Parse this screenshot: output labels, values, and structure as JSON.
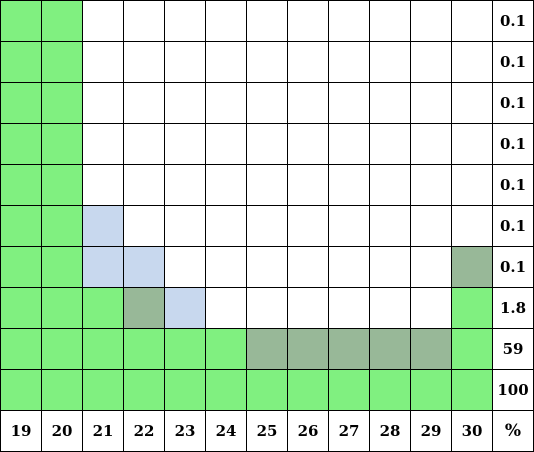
{
  "colors": {
    "empty": "#ffffff",
    "green": "#80f080",
    "blue": "#c8d8ee",
    "gray": "#98b898"
  },
  "columns": [
    "19",
    "20",
    "21",
    "22",
    "23",
    "24",
    "25",
    "26",
    "27",
    "28",
    "29",
    "30"
  ],
  "percent_header": "%",
  "rows": [
    {
      "percent": "0.1",
      "cells": [
        "green",
        "green",
        "empty",
        "empty",
        "empty",
        "empty",
        "empty",
        "empty",
        "empty",
        "empty",
        "empty",
        "empty"
      ]
    },
    {
      "percent": "0.1",
      "cells": [
        "green",
        "green",
        "empty",
        "empty",
        "empty",
        "empty",
        "empty",
        "empty",
        "empty",
        "empty",
        "empty",
        "empty"
      ]
    },
    {
      "percent": "0.1",
      "cells": [
        "green",
        "green",
        "empty",
        "empty",
        "empty",
        "empty",
        "empty",
        "empty",
        "empty",
        "empty",
        "empty",
        "empty"
      ]
    },
    {
      "percent": "0.1",
      "cells": [
        "green",
        "green",
        "empty",
        "empty",
        "empty",
        "empty",
        "empty",
        "empty",
        "empty",
        "empty",
        "empty",
        "empty"
      ]
    },
    {
      "percent": "0.1",
      "cells": [
        "green",
        "green",
        "empty",
        "empty",
        "empty",
        "empty",
        "empty",
        "empty",
        "empty",
        "empty",
        "empty",
        "empty"
      ]
    },
    {
      "percent": "0.1",
      "cells": [
        "green",
        "green",
        "blue",
        "empty",
        "empty",
        "empty",
        "empty",
        "empty",
        "empty",
        "empty",
        "empty",
        "empty"
      ]
    },
    {
      "percent": "0.1",
      "cells": [
        "green",
        "green",
        "blue",
        "blue",
        "empty",
        "empty",
        "empty",
        "empty",
        "empty",
        "empty",
        "empty",
        "gray"
      ]
    },
    {
      "percent": "1.8",
      "cells": [
        "green",
        "green",
        "green",
        "gray",
        "blue",
        "empty",
        "empty",
        "empty",
        "empty",
        "empty",
        "empty",
        "green"
      ]
    },
    {
      "percent": "59",
      "cells": [
        "green",
        "green",
        "green",
        "green",
        "green",
        "green",
        "gray",
        "gray",
        "gray",
        "gray",
        "gray",
        "green"
      ]
    },
    {
      "percent": "100",
      "cells": [
        "green",
        "green",
        "green",
        "green",
        "green",
        "green",
        "green",
        "green",
        "green",
        "green",
        "green",
        "green"
      ]
    }
  ]
}
